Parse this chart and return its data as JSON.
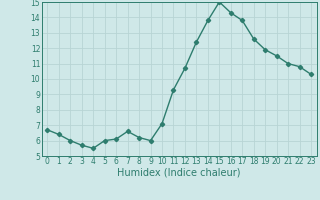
{
  "x": [
    0,
    1,
    2,
    3,
    4,
    5,
    6,
    7,
    8,
    9,
    10,
    11,
    12,
    13,
    14,
    15,
    16,
    17,
    18,
    19,
    20,
    21,
    22,
    23
  ],
  "y": [
    6.7,
    6.4,
    6.0,
    5.7,
    5.5,
    6.0,
    6.1,
    6.6,
    6.2,
    6.0,
    7.1,
    9.3,
    10.7,
    12.4,
    13.8,
    15.0,
    14.3,
    13.8,
    12.6,
    11.9,
    11.5,
    11.0,
    10.8,
    10.3
  ],
  "line_color": "#2e7d6e",
  "marker": "D",
  "markersize": 2.2,
  "linewidth": 1.0,
  "xlabel": "Humidex (Indice chaleur)",
  "xlabel_fontsize": 7,
  "bg_color": "#cfe8e8",
  "grid_color": "#b8d4d4",
  "xlim": [
    -0.5,
    23.5
  ],
  "ylim": [
    5,
    15
  ],
  "yticks": [
    5,
    6,
    7,
    8,
    9,
    10,
    11,
    12,
    13,
    14,
    15
  ],
  "xticks": [
    0,
    1,
    2,
    3,
    4,
    5,
    6,
    7,
    8,
    9,
    10,
    11,
    12,
    13,
    14,
    15,
    16,
    17,
    18,
    19,
    20,
    21,
    22,
    23
  ],
  "tick_fontsize": 5.5,
  "ytick_labels": [
    "5",
    "6",
    "7",
    "8",
    "9",
    "10",
    "11",
    "12",
    "13",
    "14",
    "15"
  ]
}
